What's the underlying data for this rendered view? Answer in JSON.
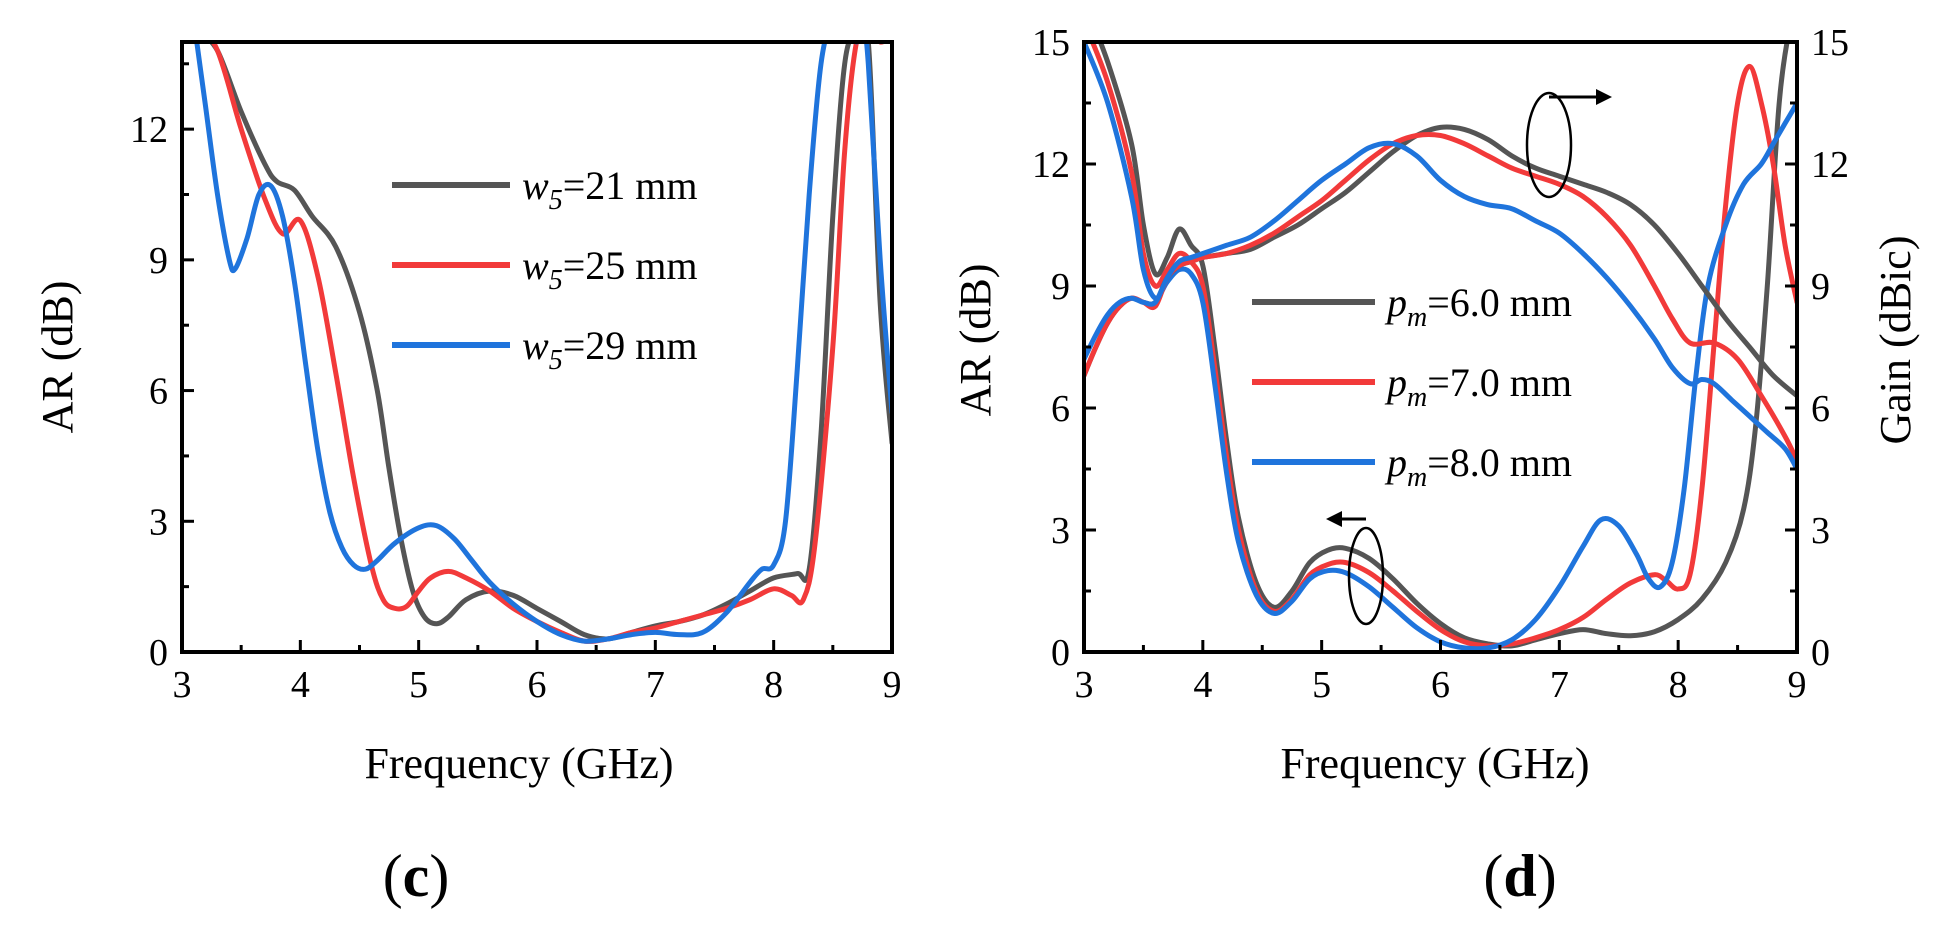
{
  "colors": {
    "series_1": "#555555",
    "series_2": "#f23a3a",
    "series_3": "#1f74dc",
    "axis": "#000000"
  },
  "chart_data": [
    {
      "type": "line",
      "panel_label": {
        "open": "(",
        "letter": "c",
        "close": ")"
      },
      "xlabel": "Frequency (GHz)",
      "ylabel": "AR (dB)",
      "xlim": [
        3,
        9
      ],
      "ylim": [
        0,
        14
      ],
      "xticks": [
        3,
        4,
        5,
        6,
        7,
        8,
        9
      ],
      "yticks": [
        0,
        3,
        6,
        9,
        12
      ],
      "grid": false,
      "legend_position": "top-right",
      "series": [
        {
          "name_var": "w",
          "name_sub": "5",
          "name_rest": "=21 mm",
          "x": [
            3.15,
            3.3,
            3.5,
            3.7,
            3.8,
            3.95,
            4.1,
            4.3,
            4.5,
            4.65,
            4.75,
            4.85,
            4.95,
            5.05,
            5.15,
            5.25,
            5.4,
            5.6,
            5.8,
            6.0,
            6.2,
            6.4,
            6.6,
            6.8,
            7.0,
            7.2,
            7.4,
            7.6,
            7.8,
            8.0,
            8.2,
            8.3,
            8.4,
            8.5,
            8.6,
            8.7,
            8.8,
            8.9,
            9.0
          ],
          "y": [
            14.2,
            13.8,
            12.4,
            11.2,
            10.8,
            10.6,
            10.0,
            9.3,
            7.8,
            6.0,
            4.2,
            2.6,
            1.4,
            0.8,
            0.65,
            0.8,
            1.2,
            1.4,
            1.3,
            1.0,
            0.7,
            0.4,
            0.3,
            0.45,
            0.6,
            0.7,
            0.85,
            1.1,
            1.4,
            1.7,
            1.8,
            1.9,
            5.0,
            10.0,
            13.5,
            14.2,
            14.0,
            8.0,
            4.8
          ]
        },
        {
          "name_var": "w",
          "name_sub": "5",
          "name_rest": "=25 mm",
          "x": [
            3.1,
            3.3,
            3.5,
            3.7,
            3.85,
            4.0,
            4.15,
            4.3,
            4.45,
            4.6,
            4.7,
            4.8,
            4.9,
            5.0,
            5.1,
            5.25,
            5.4,
            5.6,
            5.8,
            6.0,
            6.2,
            6.4,
            6.6,
            6.8,
            7.0,
            7.2,
            7.4,
            7.6,
            7.8,
            8.0,
            8.15,
            8.25,
            8.35,
            8.5,
            8.6,
            8.7,
            8.8,
            8.9,
            9.0
          ],
          "y": [
            14.6,
            13.8,
            12.0,
            10.4,
            9.6,
            9.9,
            8.6,
            6.4,
            4.0,
            2.0,
            1.2,
            1.0,
            1.05,
            1.4,
            1.7,
            1.85,
            1.7,
            1.4,
            1.0,
            0.7,
            0.45,
            0.25,
            0.3,
            0.45,
            0.55,
            0.7,
            0.85,
            1.0,
            1.2,
            1.45,
            1.3,
            1.2,
            2.5,
            7.0,
            11.5,
            14.0,
            14.4,
            14.0,
            14.2
          ]
        },
        {
          "name_var": "w",
          "name_sub": "5",
          "name_rest": "=29 mm",
          "x": [
            3.1,
            3.2,
            3.3,
            3.4,
            3.45,
            3.55,
            3.65,
            3.75,
            3.85,
            3.95,
            4.05,
            4.15,
            4.25,
            4.35,
            4.45,
            4.55,
            4.65,
            4.8,
            5.0,
            5.15,
            5.3,
            5.45,
            5.6,
            5.8,
            6.0,
            6.2,
            6.4,
            6.6,
            6.8,
            7.0,
            7.2,
            7.4,
            7.6,
            7.8,
            7.9,
            8.0,
            8.1,
            8.2,
            8.3,
            8.4,
            8.5,
            8.6,
            8.7,
            8.75,
            8.8,
            8.9,
            9.0
          ],
          "y": [
            14.5,
            12.5,
            10.5,
            9.0,
            8.8,
            9.5,
            10.5,
            10.7,
            10.0,
            8.5,
            6.5,
            4.6,
            3.2,
            2.4,
            2.0,
            1.9,
            2.1,
            2.5,
            2.85,
            2.9,
            2.6,
            2.1,
            1.6,
            1.1,
            0.7,
            0.4,
            0.25,
            0.3,
            0.4,
            0.45,
            0.4,
            0.45,
            0.9,
            1.6,
            1.9,
            2.0,
            3.0,
            6.5,
            10.5,
            13.5,
            14.5,
            14.5,
            14.0,
            14.5,
            13.5,
            9.0,
            5.5
          ]
        }
      ]
    },
    {
      "type": "line",
      "panel_label": {
        "open": "(",
        "letter": "d",
        "close": ")"
      },
      "xlabel": "Frequency (GHz)",
      "ylabel": "AR (dB)",
      "y2label": "Gain (dBic)",
      "xlim": [
        3,
        9
      ],
      "ylim": [
        0,
        15
      ],
      "y2lim": [
        0,
        15
      ],
      "xticks": [
        3,
        4,
        5,
        6,
        7,
        8,
        9
      ],
      "yticks": [
        0,
        3,
        6,
        9,
        12,
        15
      ],
      "y2ticks": [
        0,
        3,
        6,
        9,
        12,
        15
      ],
      "grid": false,
      "legend_position": "center-right",
      "series": [
        {
          "name_var": "p",
          "name_sub": "m",
          "name_rest": "=6.0 mm",
          "x": [
            3.0,
            3.2,
            3.4,
            3.5,
            3.6,
            3.7,
            3.8,
            3.9,
            4.0,
            4.1,
            4.2,
            4.3,
            4.45,
            4.6,
            4.75,
            4.9,
            5.05,
            5.2,
            5.4,
            5.6,
            5.8,
            6.0,
            6.2,
            6.4,
            6.6,
            6.8,
            7.0,
            7.2,
            7.4,
            7.6,
            7.8,
            8.0,
            8.2,
            8.4,
            8.55,
            8.65,
            8.75,
            8.85,
            8.95,
            9.0
          ],
          "y": [
            16.0,
            14.5,
            12.5,
            10.5,
            9.3,
            9.7,
            10.4,
            10.0,
            9.5,
            7.5,
            5.2,
            3.3,
            1.7,
            1.1,
            1.5,
            2.2,
            2.5,
            2.55,
            2.3,
            1.8,
            1.2,
            0.7,
            0.35,
            0.2,
            0.15,
            0.3,
            0.45,
            0.55,
            0.45,
            0.4,
            0.5,
            0.8,
            1.3,
            2.2,
            3.5,
            5.5,
            9.0,
            13.5,
            15.5,
            15.5
          ]
        },
        {
          "name_var": "p",
          "name_sub": "m",
          "name_rest": "=7.0 mm",
          "x": [
            3.0,
            3.2,
            3.4,
            3.5,
            3.6,
            3.7,
            3.8,
            3.9,
            4.0,
            4.1,
            4.2,
            4.3,
            4.45,
            4.6,
            4.75,
            4.9,
            5.05,
            5.2,
            5.4,
            5.6,
            5.8,
            6.0,
            6.2,
            6.4,
            6.6,
            6.8,
            7.0,
            7.2,
            7.4,
            7.6,
            7.8,
            7.9,
            8.0,
            8.1,
            8.2,
            8.3,
            8.4,
            8.5,
            8.6,
            8.7,
            8.8,
            8.9,
            9.0
          ],
          "y": [
            15.5,
            14.0,
            11.8,
            9.8,
            9.0,
            9.4,
            9.8,
            9.6,
            9.0,
            7.0,
            4.8,
            3.0,
            1.5,
            1.0,
            1.3,
            1.9,
            2.15,
            2.2,
            1.95,
            1.5,
            1.0,
            0.55,
            0.25,
            0.15,
            0.2,
            0.35,
            0.55,
            0.85,
            1.3,
            1.7,
            1.9,
            1.75,
            1.55,
            1.9,
            4.0,
            7.5,
            11.0,
            13.5,
            14.4,
            13.5,
            12.0,
            10.0,
            8.6
          ]
        },
        {
          "name_var": "p",
          "name_sub": "m",
          "name_rest": "=8.0 mm",
          "x": [
            3.0,
            3.2,
            3.4,
            3.5,
            3.6,
            3.7,
            3.8,
            3.9,
            4.0,
            4.1,
            4.2,
            4.3,
            4.45,
            4.6,
            4.75,
            4.9,
            5.05,
            5.2,
            5.4,
            5.6,
            5.8,
            6.0,
            6.2,
            6.4,
            6.6,
            6.8,
            7.0,
            7.2,
            7.35,
            7.5,
            7.65,
            7.75,
            7.85,
            7.95,
            8.05,
            8.15,
            8.25,
            8.4,
            8.55,
            8.7,
            8.8,
            8.9,
            9.0
          ],
          "y": [
            15.0,
            13.5,
            11.2,
            9.4,
            8.7,
            9.1,
            9.4,
            9.3,
            8.6,
            6.6,
            4.4,
            2.7,
            1.4,
            0.95,
            1.25,
            1.8,
            2.0,
            1.95,
            1.6,
            1.1,
            0.6,
            0.25,
            0.1,
            0.1,
            0.3,
            0.8,
            1.6,
            2.6,
            3.25,
            3.1,
            2.4,
            1.8,
            1.6,
            2.2,
            4.0,
            6.8,
            9.0,
            10.5,
            11.5,
            12.0,
            12.5,
            13.0,
            13.5
          ]
        }
      ],
      "gain_series": [
        {
          "x": [
            3.0,
            3.1,
            3.2,
            3.3,
            3.4,
            3.5,
            3.6,
            3.7,
            3.8,
            3.9,
            4.0,
            4.2,
            4.4,
            4.6,
            4.8,
            5.0,
            5.2,
            5.4,
            5.6,
            5.8,
            6.0,
            6.2,
            6.4,
            6.6,
            6.8,
            7.0,
            7.2,
            7.4,
            7.6,
            7.8,
            8.0,
            8.2,
            8.4,
            8.6,
            8.8,
            9.0
          ],
          "y": [
            6.8,
            7.5,
            8.1,
            8.5,
            8.7,
            8.6,
            8.6,
            9.2,
            9.5,
            9.6,
            9.7,
            9.8,
            9.9,
            10.2,
            10.5,
            10.9,
            11.3,
            11.8,
            12.3,
            12.7,
            12.9,
            12.85,
            12.6,
            12.2,
            11.9,
            11.7,
            11.5,
            11.3,
            11.0,
            10.5,
            9.8,
            9.0,
            8.2,
            7.5,
            6.8,
            6.3
          ]
        },
        {
          "x": [
            3.0,
            3.1,
            3.2,
            3.3,
            3.4,
            3.5,
            3.6,
            3.7,
            3.8,
            3.9,
            4.0,
            4.2,
            4.4,
            4.6,
            4.8,
            5.0,
            5.2,
            5.4,
            5.6,
            5.8,
            6.0,
            6.2,
            6.4,
            6.6,
            6.8,
            7.0,
            7.2,
            7.4,
            7.6,
            7.8,
            7.95,
            8.1,
            8.3,
            8.5,
            8.7,
            8.9,
            9.0
          ],
          "y": [
            6.8,
            7.5,
            8.1,
            8.5,
            8.7,
            8.6,
            8.5,
            9.2,
            9.5,
            9.6,
            9.7,
            9.8,
            10.0,
            10.3,
            10.7,
            11.1,
            11.6,
            12.1,
            12.5,
            12.7,
            12.7,
            12.5,
            12.2,
            11.9,
            11.7,
            11.5,
            11.2,
            10.7,
            10.0,
            9.0,
            8.2,
            7.6,
            7.6,
            7.2,
            6.3,
            5.3,
            4.7
          ]
        },
        {
          "x": [
            3.0,
            3.1,
            3.2,
            3.3,
            3.4,
            3.5,
            3.6,
            3.7,
            3.8,
            3.9,
            4.0,
            4.2,
            4.4,
            4.6,
            4.8,
            5.0,
            5.2,
            5.4,
            5.6,
            5.8,
            6.0,
            6.2,
            6.4,
            6.6,
            6.8,
            7.0,
            7.2,
            7.4,
            7.6,
            7.8,
            7.95,
            8.1,
            8.2,
            8.3,
            8.45,
            8.6,
            8.75,
            8.9,
            9.0
          ],
          "y": [
            7.2,
            7.8,
            8.3,
            8.6,
            8.7,
            8.6,
            8.6,
            9.2,
            9.6,
            9.7,
            9.8,
            10.0,
            10.2,
            10.6,
            11.1,
            11.6,
            12.0,
            12.4,
            12.5,
            12.2,
            11.6,
            11.2,
            11.0,
            10.9,
            10.6,
            10.3,
            9.8,
            9.2,
            8.5,
            7.7,
            7.0,
            6.6,
            6.7,
            6.6,
            6.2,
            5.8,
            5.4,
            5.0,
            4.5
          ]
        }
      ]
    }
  ]
}
